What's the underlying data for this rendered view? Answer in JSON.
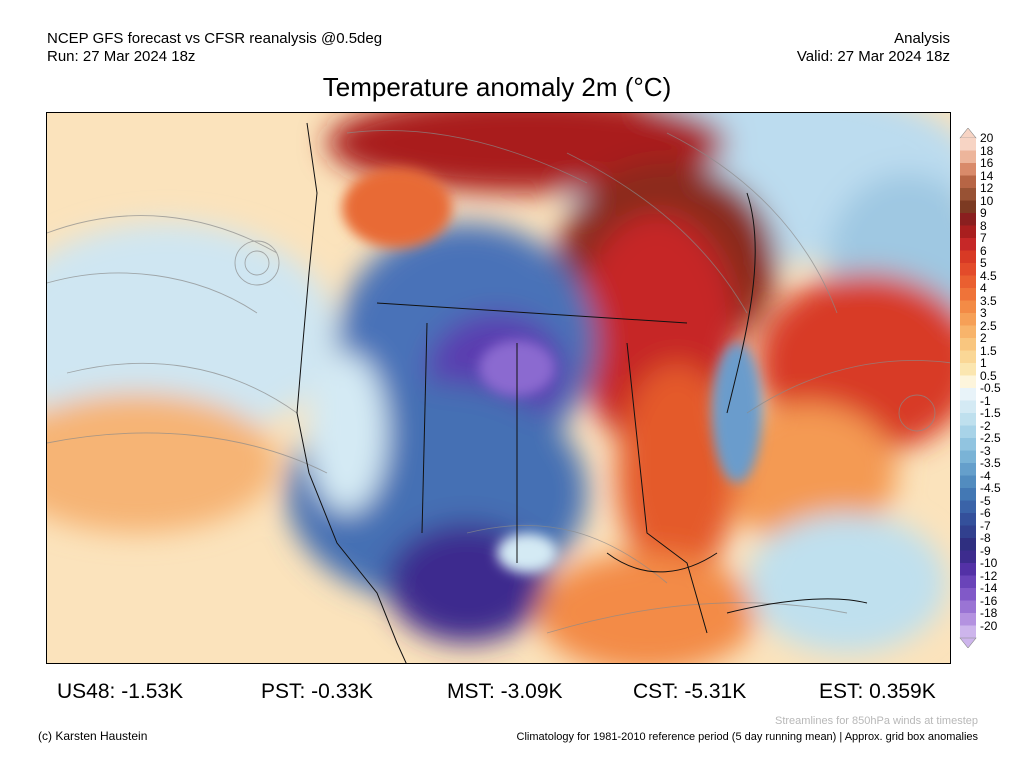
{
  "header": {
    "line1_left": "NCEP GFS forecast vs CFSR reanalysis @0.5deg",
    "line2_left": "Run: 27 Mar 2024 18z",
    "line1_right": "Analysis",
    "line2_right": "Valid: 27 Mar 2024 18z"
  },
  "title": "Temperature anomaly 2m (°C)",
  "colorbar": {
    "labels": [
      "20",
      "18",
      "16",
      "14",
      "12",
      "10",
      "9",
      "8",
      "7",
      "6",
      "5",
      "4.5",
      "4",
      "3.5",
      "3",
      "2.5",
      "2",
      "1.5",
      "1",
      "0.5",
      "-0.5",
      "-1",
      "-1.5",
      "-2",
      "-2.5",
      "-3",
      "-3.5",
      "-4",
      "-4.5",
      "-5",
      "-6",
      "-7",
      "-8",
      "-9",
      "-10",
      "-12",
      "-14",
      "-16",
      "-18",
      "-20"
    ],
    "colors": [
      "#f7d4c4",
      "#edb59b",
      "#d98a6a",
      "#b76545",
      "#985234",
      "#7c3a22",
      "#8a1f1f",
      "#a91f1f",
      "#c62828",
      "#d83a25",
      "#e34b2a",
      "#ea5f30",
      "#ef7339",
      "#f38b46",
      "#f6a057",
      "#f8b46b",
      "#f9c67f",
      "#fad796",
      "#fbe6b0",
      "#fdf5dc",
      "#e8f3f9",
      "#d4eaf4",
      "#bfe0ee",
      "#a8d3e8",
      "#91c4e0",
      "#7ab3d6",
      "#659fcb",
      "#528cbf",
      "#4378b4",
      "#3a63a8",
      "#34509b",
      "#31408e",
      "#2f2f80",
      "#3d2c8e",
      "#5331a6",
      "#6a44b9",
      "#8159c8",
      "#9a74d4",
      "#b492e0",
      "#cdb5ec"
    ]
  },
  "stats": [
    {
      "label": "US48: -1.53K"
    },
    {
      "label": "PST: -0.33K"
    },
    {
      "label": "MST: -3.09K"
    },
    {
      "label": "CST: -5.31K"
    },
    {
      "label": "EST: 0.359K"
    }
  ],
  "footer": {
    "credit": "(c) Karsten Haustein",
    "streamlines": "Streamlines for 850hPa winds at timestep",
    "climatology": "Climatology for 1981-2010 reference period (5 day running mean) | Approx. grid box anomalies"
  }
}
